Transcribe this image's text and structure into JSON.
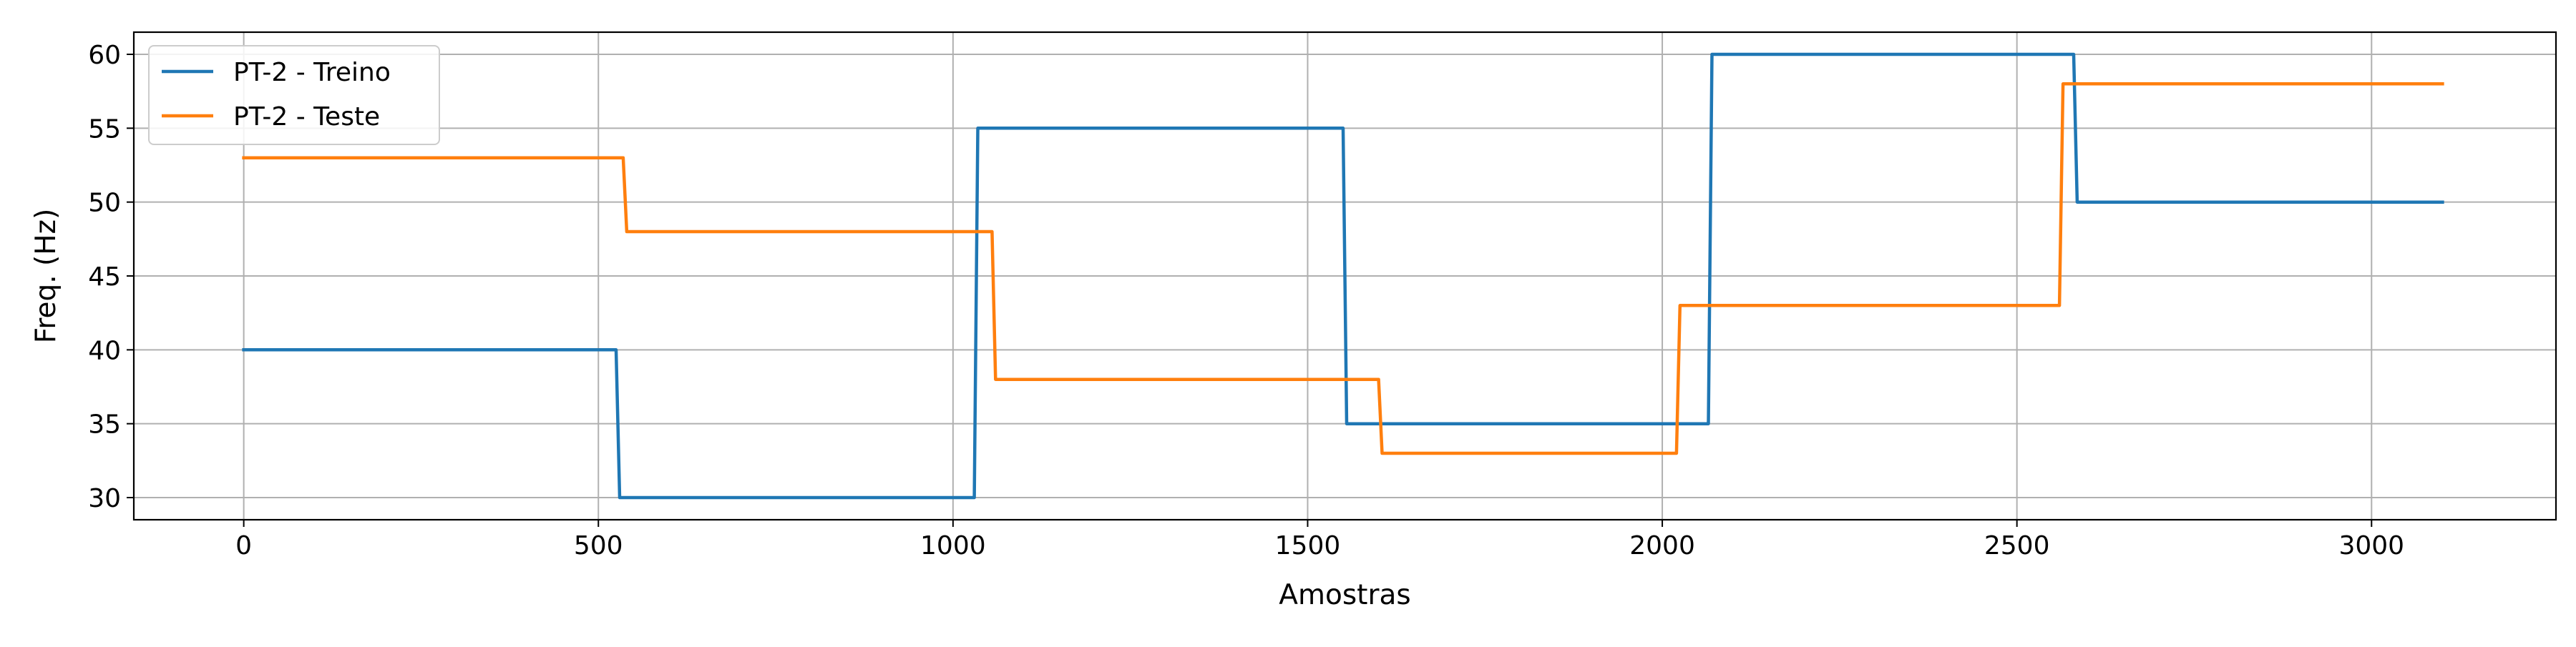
{
  "chart_data": {
    "type": "line",
    "title": "",
    "xlabel": "Amostras",
    "ylabel": "Freq. (Hz)",
    "xlim": [
      -155,
      3260
    ],
    "ylim": [
      28.5,
      61.5
    ],
    "xticks": [
      0,
      500,
      1000,
      1500,
      2000,
      2500,
      3000
    ],
    "yticks": [
      30,
      35,
      40,
      45,
      50,
      55,
      60
    ],
    "grid": true,
    "legend_position": "top-left",
    "series": [
      {
        "name": "PT-2 - Treino",
        "color": "#1f77b4",
        "x": [
          0,
          525,
          530,
          1030,
          1035,
          1550,
          1555,
          2065,
          2070,
          2580,
          2585,
          3100
        ],
        "y": [
          40,
          40,
          30,
          30,
          55,
          55,
          35,
          35,
          60,
          60,
          50,
          50
        ]
      },
      {
        "name": "PT-2 - Teste",
        "color": "#ff7f0e",
        "x": [
          0,
          535,
          540,
          1055,
          1060,
          1600,
          1605,
          2020,
          2025,
          2560,
          2565,
          3100
        ],
        "y": [
          53,
          53,
          48,
          48,
          38,
          38,
          33,
          33,
          43,
          43,
          58,
          58
        ]
      }
    ]
  }
}
